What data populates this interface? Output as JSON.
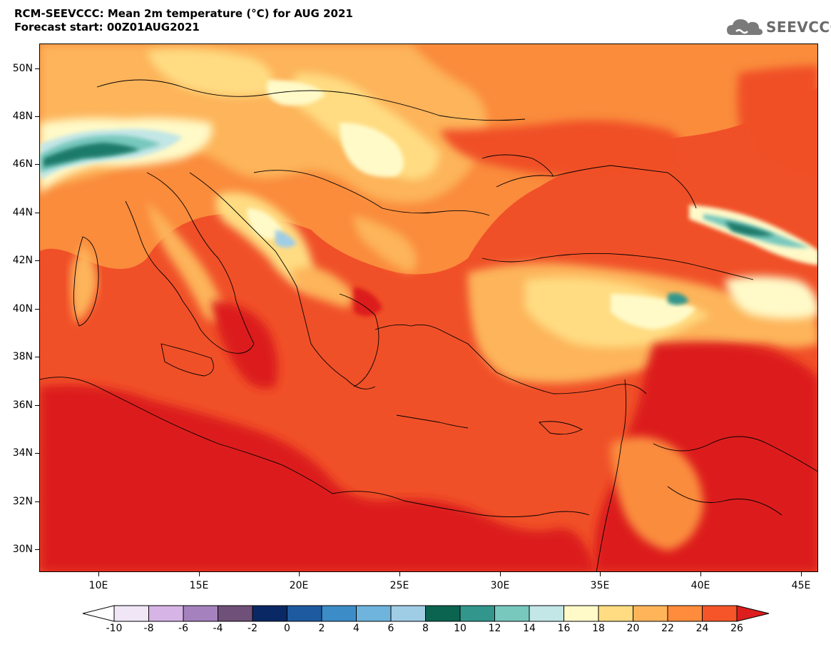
{
  "header": {
    "title_line1": "RCM-SEEVCCC: Mean 2m temperature (°C) for AUG 2021",
    "title_line2": "Forecast start: 00Z01AUG2021"
  },
  "logo": {
    "text": "SEEVCCC",
    "icon": "cloud-icon"
  },
  "map": {
    "lat_labels": [
      "50N",
      "48N",
      "46N",
      "44N",
      "42N",
      "40N",
      "38N",
      "36N",
      "34N",
      "32N",
      "30N"
    ],
    "lon_labels": [
      "10E",
      "15E",
      "20E",
      "25E",
      "30E",
      "35E",
      "40E",
      "45E"
    ]
  },
  "colorbar": {
    "labels": [
      "-10",
      "-8",
      "-6",
      "-4",
      "-2",
      "0",
      "2",
      "4",
      "6",
      "8",
      "10",
      "12",
      "14",
      "16",
      "18",
      "20",
      "22",
      "24",
      "26"
    ],
    "under_color": "#ffffff",
    "over_color": "#dc1e1e",
    "colors": [
      "#f0e6f5",
      "#d7b4e6",
      "#a582be",
      "#6e5078",
      "#0a2864",
      "#1e5aa0",
      "#3c8cc8",
      "#6eb4dc",
      "#a0cde6",
      "#0a6450",
      "#32968c",
      "#78c8be",
      "#c3e6e6",
      "#fffac8",
      "#ffdc82",
      "#ffb45a",
      "#ff8c3c",
      "#f55528"
    ]
  },
  "colors": {
    "deep_red": "#dc1e1e",
    "red_orange": "#f05028",
    "orange": "#fa8c3c",
    "light_orange": "#fdb45a",
    "yellow": "#ffdc82",
    "cream": "#fffac8",
    "teal": "#1e7a6a"
  }
}
